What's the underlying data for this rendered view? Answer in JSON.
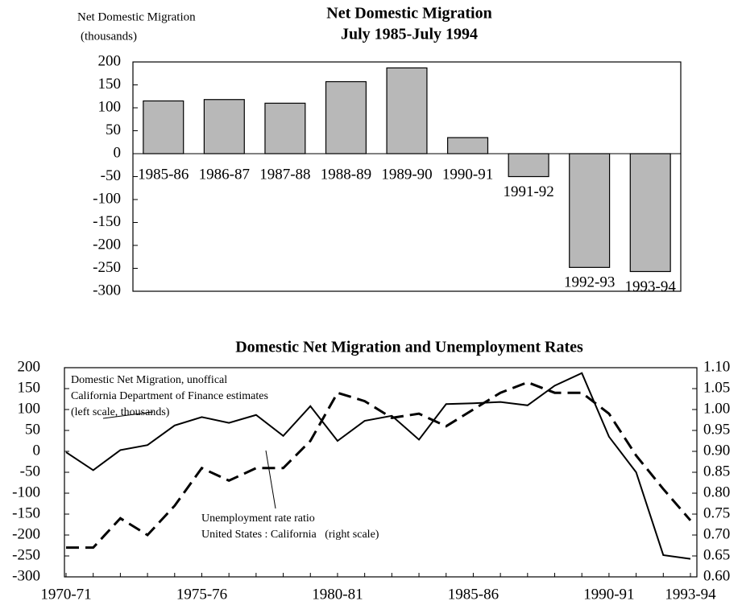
{
  "chart_data": [
    {
      "type": "bar",
      "title": [
        "Net Domestic Migration",
        "July 1985-July 1994"
      ],
      "ylabel": [
        "Net Domestic Migration",
        "(thousands)"
      ],
      "categories": [
        "1985-86",
        "1986-87",
        "1987-88",
        "1988-89",
        "1989-90",
        "1990-91",
        "1991-92",
        "1992-93",
        "1993-94"
      ],
      "values": [
        115,
        118,
        110,
        157,
        187,
        35,
        -50,
        -248,
        -257
      ],
      "color": "#b8b8b8",
      "ylim": [
        -300,
        200
      ],
      "yticks": [
        -300,
        -250,
        -200,
        -150,
        -100,
        -50,
        0,
        50,
        100,
        150,
        200
      ],
      "grid": false
    },
    {
      "type": "line",
      "title": "Domestic Net Migration and Unemployment Rates",
      "categories": [
        "1970-71",
        null,
        null,
        null,
        null,
        "1975-76",
        null,
        null,
        null,
        null,
        "1980-81",
        null,
        null,
        null,
        null,
        "1985-86",
        null,
        null,
        null,
        null,
        "1990-91",
        null,
        null,
        "1993-94"
      ],
      "series": [
        {
          "color": "#000000",
          "line_style": "solid",
          "values": [
            -2,
            -45,
            3,
            15,
            62,
            82,
            68,
            87,
            37,
            108,
            25,
            73,
            85,
            28,
            113,
            115,
            118,
            110,
            157,
            187,
            35,
            -50,
            -248,
            -257
          ]
        },
        {
          "color": "#000000",
          "line_style": "dashed",
          "axis": "y2",
          "values": [
            0.67,
            0.67,
            0.74,
            0.7,
            0.77,
            0.86,
            0.83,
            0.86,
            0.86,
            0.925,
            1.04,
            1.02,
            0.98,
            0.99,
            0.96,
            1.0,
            1.04,
            1.065,
            1.04,
            1.04,
            0.99,
            0.89,
            0.81,
            0.735
          ]
        }
      ],
      "annotations": [
        [
          "Domestic Net Migration, unoffical",
          "California Department of Finance estimates",
          "(left scale, thousands)"
        ],
        [
          "Unemployment rate ratio",
          "United States : California   (right scale)"
        ]
      ],
      "ylim": [
        -300,
        200
      ],
      "yticks": [
        -300,
        -250,
        -200,
        -150,
        -100,
        -50,
        0,
        50,
        100,
        150,
        200
      ],
      "y2lim": [
        0.6,
        1.1
      ],
      "y2ticks": [
        {
          "value": 0.6,
          "label": "0.60"
        },
        {
          "value": 0.65,
          "label": "0.65"
        },
        {
          "value": 0.7,
          "label": "0.70"
        },
        {
          "value": 0.75,
          "label": "0.75"
        },
        {
          "value": 0.8,
          "label": "0.80"
        },
        {
          "value": 0.85,
          "label": "0.85"
        },
        {
          "value": 0.9,
          "label": "0.90"
        },
        {
          "value": 0.95,
          "label": "0.95"
        },
        {
          "value": 1.0,
          "label": "1.00"
        },
        {
          "value": 1.05,
          "label": "1.05"
        },
        {
          "value": 1.1,
          "label": "1.10"
        }
      ],
      "grid": false
    }
  ]
}
